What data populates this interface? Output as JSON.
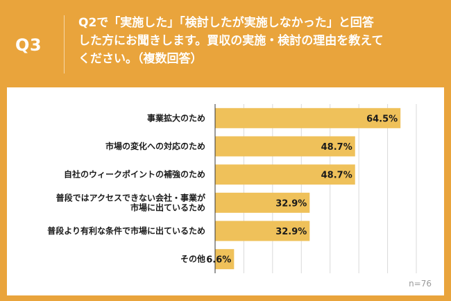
{
  "header": {
    "qnum": "Q3",
    "question_lines": [
      "Q2で「実施した」「検討したが実施しなかった」と回答",
      "した方にお聞きします。買収の実施・検討の理由を教えて",
      "ください。（複数回答）"
    ]
  },
  "colors": {
    "background": "#e9a43c",
    "bar": "#efc15a",
    "grid": "#d9d9d9",
    "axis": "#333333"
  },
  "chart_data": {
    "type": "bar",
    "orientation": "horizontal",
    "categories": [
      [
        "事業拡大のため"
      ],
      [
        "市場の変化への対応のため"
      ],
      [
        "自社のウィークポイントの補強のため"
      ],
      [
        "普段ではアクセスできない会社・事業が",
        "市場に出ているため"
      ],
      [
        "普段より有利な条件で市場に出ているため"
      ],
      [
        "その他"
      ]
    ],
    "values": [
      64.5,
      48.7,
      48.7,
      32.9,
      32.9,
      6.6
    ],
    "value_labels": [
      "64.5%",
      "48.7%",
      "48.7%",
      "32.9%",
      "32.9%",
      "6.6%"
    ],
    "xlim": [
      0,
      70
    ],
    "grid": true,
    "grid_step": 10
  },
  "footnote": "n=76"
}
